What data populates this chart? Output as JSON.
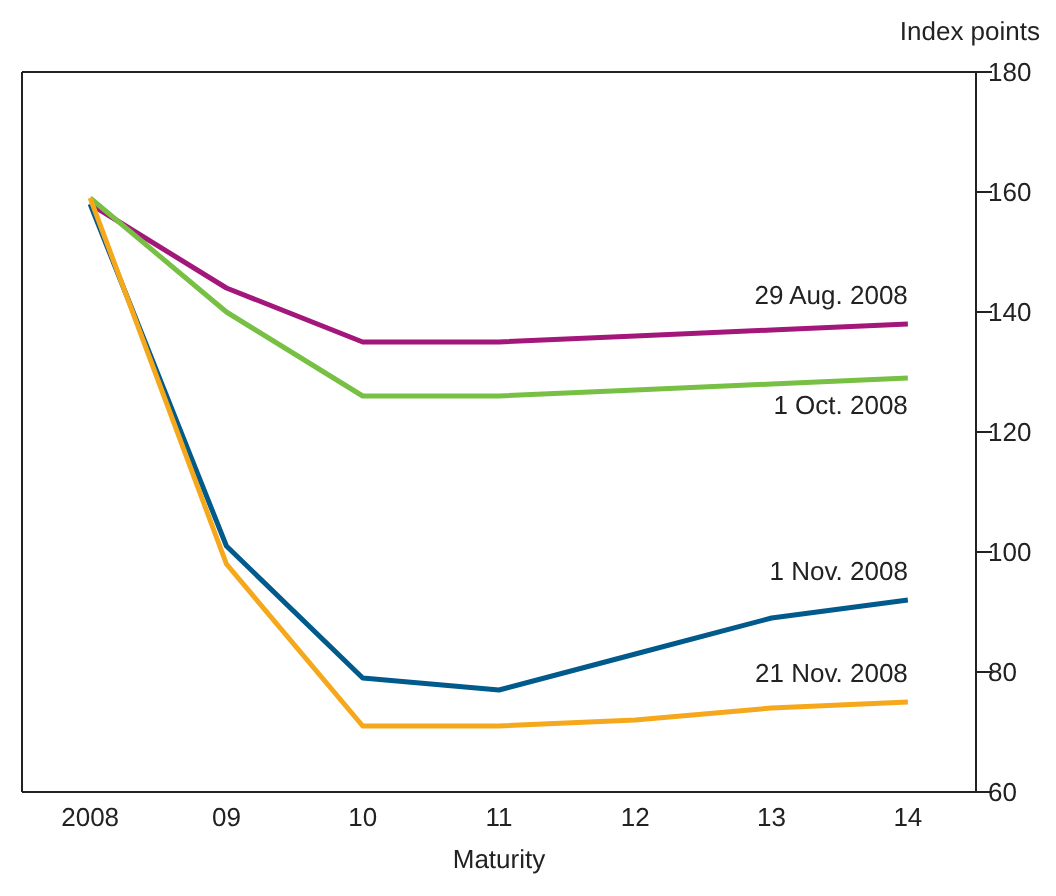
{
  "chart_data": {
    "type": "line",
    "ylabel": "Index points",
    "xlabel": "Maturity",
    "categories": [
      "2008",
      "09",
      "10",
      "11",
      "12",
      "13",
      "14"
    ],
    "series": [
      {
        "name": "29 Aug. 2008",
        "color": "#a3177b",
        "values": [
          158,
          144,
          135,
          135,
          136,
          137,
          138
        ]
      },
      {
        "name": "1 Oct. 2008",
        "color": "#77c043",
        "values": [
          159,
          140,
          126,
          126,
          127,
          128,
          129
        ]
      },
      {
        "name": "1 Nov. 2008",
        "color": "#005a8c",
        "values": [
          158,
          101,
          79,
          77,
          83,
          89,
          92
        ]
      },
      {
        "name": "21 Nov. 2008",
        "color": "#f5a81c",
        "values": [
          159,
          98,
          71,
          71,
          72,
          74,
          75
        ]
      }
    ],
    "ylim": [
      60,
      180
    ],
    "yticks": [
      60,
      80,
      100,
      120,
      140,
      160,
      180
    ],
    "grid": false,
    "legend": false,
    "marker": "none",
    "line_style": "solid"
  }
}
